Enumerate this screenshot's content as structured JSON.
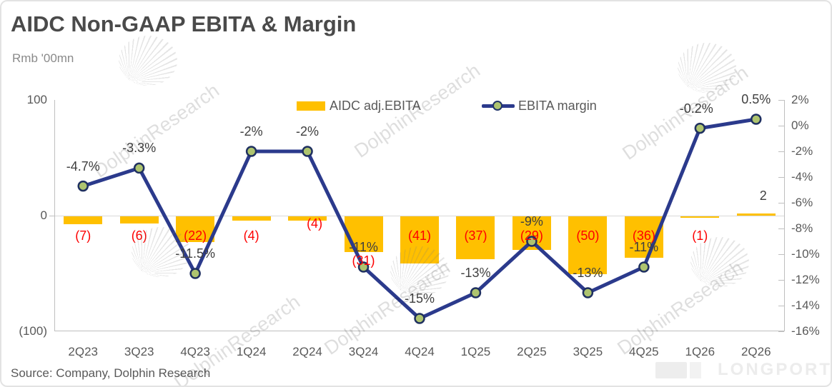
{
  "title": "AIDC Non-GAAP EBITA & Margin",
  "subtitle": "Rmb '00mn",
  "source": "Source: Company, Dolphin Research",
  "watermark": {
    "text": "DolphinResearch",
    "brand": "LONGPORT"
  },
  "legend": {
    "bar_label": "AIDC adj.EBITA",
    "line_label": "EBITA margin"
  },
  "colors": {
    "bar": "#FFC000",
    "line": "#2B3A8C",
    "marker_fill": "#AEC46F",
    "marker_stroke": "#1F3060",
    "bar_label_negative": "#FE0000",
    "bar_label_positive": "#404040",
    "margin_label": "#3F3F3F",
    "axis_text": "#595959"
  },
  "chart_data": {
    "type": "bar+line combo, dual axis",
    "categories": [
      "2Q23",
      "3Q23",
      "4Q23",
      "1Q24",
      "2Q24",
      "3Q24",
      "4Q24",
      "1Q25",
      "2Q25",
      "3Q25",
      "4Q25",
      "1Q26",
      "2Q26"
    ],
    "series": [
      {
        "name": "AIDC adj.EBITA",
        "type": "bar",
        "axis": "left",
        "values": [
          -7,
          -6,
          -22,
          -4,
          -4,
          -31,
          -41,
          -37,
          -29,
          -50,
          -36,
          -1,
          2
        ],
        "labels": [
          "(7)",
          "(6)",
          "(22)",
          "(4)",
          "(4)",
          "(31)",
          "(41)",
          "(37)",
          "(29)",
          "(50)",
          "(36)",
          "(1)",
          "2"
        ]
      },
      {
        "name": "EBITA margin",
        "type": "line",
        "axis": "right",
        "values": [
          -4.7,
          -3.3,
          -11.5,
          -2,
          -2,
          -11,
          -15,
          -13,
          -9,
          -13,
          -11,
          -0.2,
          0.5
        ],
        "labels": [
          "-4.7%",
          "-3.3%",
          "-11.5%",
          "-2%",
          "-2%",
          "-11%",
          "-15%",
          "-13%",
          "-9%",
          "-13%",
          "-11%",
          "-0.2%",
          "0.5%"
        ]
      }
    ],
    "left_axis": {
      "title": "Rmb '00mn",
      "tick_labels": [
        "100",
        "0",
        "(100)"
      ],
      "tick_values": [
        100,
        0,
        -100
      ],
      "range": [
        -100,
        100
      ]
    },
    "right_axis": {
      "tick_labels": [
        "2%",
        "0%",
        "-2%",
        "-4%",
        "-6%",
        "-8%",
        "-10%",
        "-12%",
        "-14%",
        "-16%"
      ],
      "tick_values": [
        2,
        0,
        -2,
        -4,
        -6,
        -8,
        -10,
        -12,
        -14,
        -16
      ],
      "range": [
        -16,
        2
      ]
    },
    "grid": "zero-line-only",
    "legend_position": "top-center",
    "layout_hints": {
      "bar_label_center_y": 328,
      "bar_label_y_overrides": {
        "4": 311,
        "5": 363,
        "12": 272
      },
      "bar_label_x_offsets": {
        "4": 10,
        "12": 10
      },
      "margin_label_dy": -28,
      "margin_label_x_offsets": {
        "11": -5
      }
    }
  }
}
